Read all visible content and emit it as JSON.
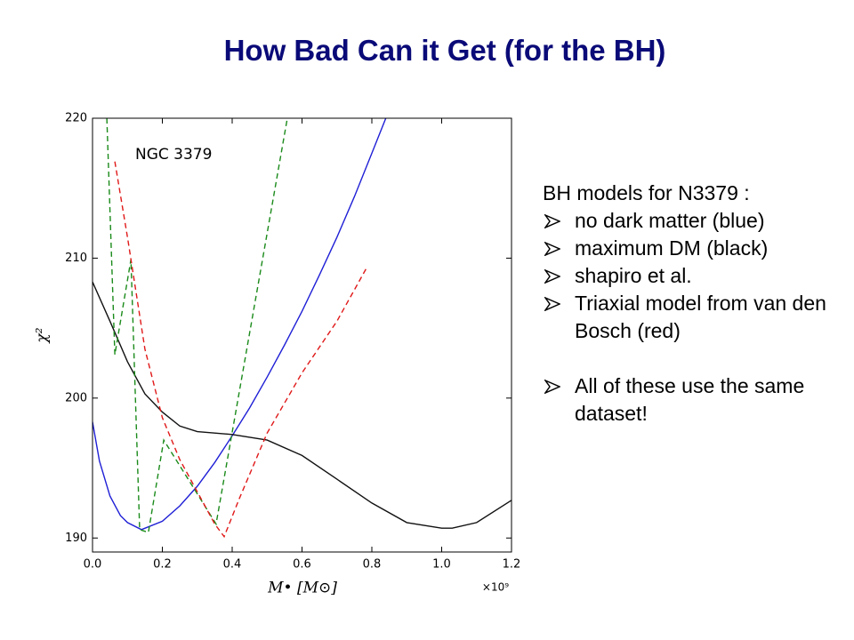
{
  "slide": {
    "title": "How Bad Can it Get (for the BH)",
    "heading": "BH models for N3379 :",
    "bullets": [
      "no dark matter (blue)",
      "maximum DM (black)",
      "shapiro et al.",
      "Triaxial model from van den Bosch (red)",
      "All of these use the same dataset!"
    ]
  },
  "chart_data": {
    "type": "line",
    "annotation": "NGC 3379",
    "x_label": "M• [M⊙]",
    "y_label": "χ²",
    "x_offset_label": "×10⁹",
    "xlim": [
      0,
      1.2
    ],
    "ylim": [
      189,
      220
    ],
    "xticks": [
      {
        "value": 0,
        "label": "0.0"
      },
      0.2,
      0.4,
      0.6,
      0.8,
      {
        "value": 1,
        "label": "1.0"
      },
      1.2
    ],
    "yticks": [
      190,
      200,
      210,
      220
    ],
    "series": [
      {
        "color": "#1f1fd6",
        "dashed": false,
        "x": [
          0,
          0.02,
          0.05,
          0.08,
          0.1,
          0.14,
          0.2,
          0.25,
          0.3,
          0.35,
          0.4,
          0.45,
          0.5,
          0.55,
          0.6,
          0.65,
          0.7,
          0.75,
          0.8,
          0.84
        ],
        "values": [
          198.3,
          195.5,
          193.0,
          191.6,
          191.1,
          190.6,
          191.2,
          192.3,
          193.7,
          195.4,
          197.3,
          199.3,
          201.5,
          203.8,
          206.2,
          208.8,
          211.5,
          214.4,
          217.5,
          220
        ]
      },
      {
        "color": "#111111",
        "dashed": false,
        "x": [
          0,
          0.05,
          0.1,
          0.15,
          0.2,
          0.25,
          0.3,
          0.4,
          0.5,
          0.6,
          0.7,
          0.8,
          0.9,
          1.0,
          1.03,
          1.1,
          1.2
        ],
        "values": [
          208.3,
          205.5,
          202.6,
          200.3,
          199.0,
          198.0,
          197.6,
          197.4,
          197.0,
          195.9,
          194.2,
          192.5,
          191.1,
          190.7,
          190.7,
          191.1,
          192.7
        ]
      },
      {
        "color": "#1a8a1a",
        "dashed": true,
        "x": [
          0.041,
          0.064,
          0.11,
          0.135,
          0.16,
          0.204,
          0.354,
          0.558
        ],
        "values": [
          220,
          203.1,
          209.9,
          190.6,
          190.4,
          197,
          191,
          220
        ]
      },
      {
        "color": "#e01818",
        "dashed": true,
        "x": [
          0.064,
          0.1,
          0.15,
          0.2,
          0.25,
          0.3,
          0.35,
          0.377,
          0.42,
          0.5,
          0.6,
          0.7,
          0.787
        ],
        "values": [
          216.9,
          211.5,
          203.5,
          198.6,
          195.6,
          193.3,
          191.0,
          190.1,
          192.8,
          197.5,
          201.8,
          205.5,
          209.4
        ]
      }
    ]
  }
}
